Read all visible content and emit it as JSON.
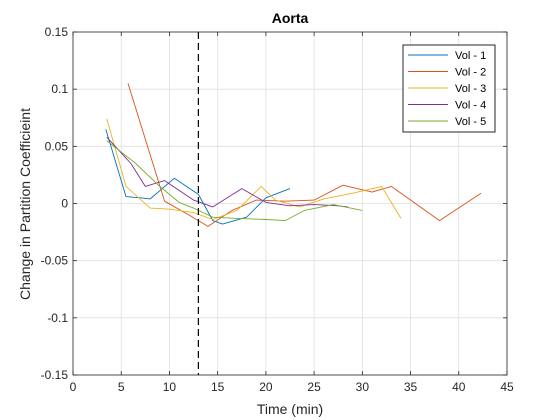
{
  "chart_data": {
    "type": "line",
    "title": "Aorta",
    "xlabel": "Time (min)",
    "ylabel": "Change in Partition Coefficieint",
    "xlim": [
      0,
      45
    ],
    "ylim": [
      -0.15,
      0.15
    ],
    "xticks": [
      0,
      5,
      10,
      15,
      20,
      25,
      30,
      35,
      40,
      45
    ],
    "xtick_labels": [
      "0",
      "5",
      "10",
      "15",
      "20",
      "25",
      "30",
      "35",
      "40",
      "45"
    ],
    "yticks": [
      -0.15,
      -0.1,
      -0.05,
      0,
      0.05,
      0.1,
      0.15
    ],
    "ytick_labels": [
      "-0.15",
      "-0.1",
      "-0.05",
      "0",
      "0.05",
      "0.1",
      "0.15"
    ],
    "grid": true,
    "legend_position": "top-right",
    "vertical_line": {
      "x": 13,
      "style": "dashed",
      "color": "#000000"
    },
    "series": [
      {
        "name": "Vol - 1",
        "color": "#0072BD",
        "points": [
          [
            3.4,
            0.065
          ],
          [
            5.5,
            0.006
          ],
          [
            7.0,
            0.005
          ],
          [
            8.0,
            0.004
          ],
          [
            10.5,
            0.022
          ],
          [
            13.0,
            0.008
          ],
          [
            14.5,
            -0.015
          ],
          [
            15.5,
            -0.018
          ],
          [
            18.0,
            -0.012
          ],
          [
            20.0,
            0.005
          ],
          [
            22.5,
            0.013
          ]
        ]
      },
      {
        "name": "Vol - 2",
        "color": "#D95319",
        "points": [
          [
            5.7,
            0.105
          ],
          [
            9.5,
            0.002
          ],
          [
            12.0,
            -0.01
          ],
          [
            14.0,
            -0.02
          ],
          [
            16.5,
            -0.006
          ],
          [
            19.0,
            0.003
          ],
          [
            22.0,
            0.002
          ],
          [
            25.0,
            0.003
          ],
          [
            28.0,
            0.016
          ],
          [
            31.0,
            0.01
          ],
          [
            33.0,
            0.015
          ],
          [
            35.5,
            0.0
          ],
          [
            38.0,
            -0.015
          ],
          [
            42.3,
            0.009
          ]
        ]
      },
      {
        "name": "Vol - 3",
        "color": "#EDB120",
        "points": [
          [
            3.5,
            0.074
          ],
          [
            5.5,
            0.015
          ],
          [
            8.0,
            -0.004
          ],
          [
            10.0,
            -0.005
          ],
          [
            12.5,
            -0.008
          ],
          [
            14.5,
            -0.014
          ],
          [
            17.0,
            -0.006
          ],
          [
            19.5,
            0.015
          ],
          [
            21.0,
            0.003
          ],
          [
            23.5,
            -0.003
          ],
          [
            26.0,
            0.004
          ],
          [
            29.0,
            0.009
          ],
          [
            32.0,
            0.015
          ],
          [
            34.0,
            -0.013
          ]
        ]
      },
      {
        "name": "Vol - 4",
        "color": "#7E2F8E",
        "points": [
          [
            3.5,
            0.058
          ],
          [
            6.0,
            0.035
          ],
          [
            7.5,
            0.015
          ],
          [
            9.5,
            0.02
          ],
          [
            12.5,
            0.003
          ],
          [
            14.5,
            -0.003
          ],
          [
            17.5,
            0.013
          ],
          [
            20.0,
            0.001
          ],
          [
            22.5,
            -0.002
          ],
          [
            25.0,
            -0.001
          ],
          [
            27.5,
            -0.002
          ],
          [
            28.5,
            -0.003
          ]
        ]
      },
      {
        "name": "Vol - 5",
        "color": "#77AC30",
        "points": [
          [
            3.5,
            0.055
          ],
          [
            6.5,
            0.035
          ],
          [
            9.0,
            0.015
          ],
          [
            11.0,
            0.001
          ],
          [
            12.5,
            -0.004
          ],
          [
            14.5,
            -0.012
          ],
          [
            17.0,
            -0.013
          ],
          [
            20.0,
            -0.014
          ],
          [
            22.0,
            -0.015
          ],
          [
            24.0,
            -0.006
          ],
          [
            27.0,
            -0.001
          ],
          [
            30.0,
            -0.006
          ]
        ]
      }
    ]
  }
}
